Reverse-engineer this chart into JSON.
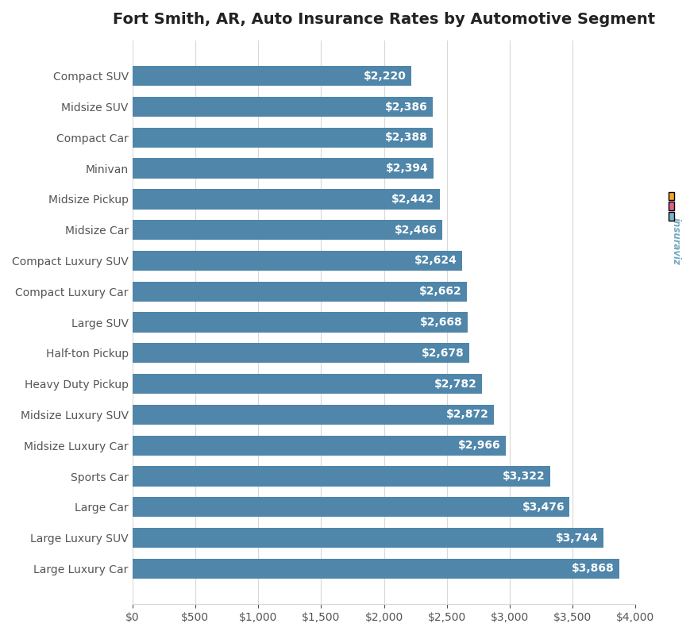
{
  "title": "Fort Smith, AR, Auto Insurance Rates by Automotive Segment",
  "categories": [
    "Compact SUV",
    "Midsize SUV",
    "Compact Car",
    "Minivan",
    "Midsize Pickup",
    "Midsize Car",
    "Compact Luxury SUV",
    "Compact Luxury Car",
    "Large SUV",
    "Half-ton Pickup",
    "Heavy Duty Pickup",
    "Midsize Luxury SUV",
    "Midsize Luxury Car",
    "Sports Car",
    "Large Car",
    "Large Luxury SUV",
    "Large Luxury Car"
  ],
  "values": [
    2220,
    2386,
    2388,
    2394,
    2442,
    2466,
    2624,
    2662,
    2668,
    2678,
    2782,
    2872,
    2966,
    3322,
    3476,
    3744,
    3868
  ],
  "bar_color": "#4f86aa",
  "label_color": "#ffffff",
  "background_color": "#ffffff",
  "grid_color": "#d8d8d8",
  "title_fontsize": 14,
  "label_fontsize": 10,
  "tick_fontsize": 10,
  "xlim": [
    0,
    4000
  ],
  "xticks": [
    0,
    500,
    1000,
    1500,
    2000,
    2500,
    3000,
    3500,
    4000
  ]
}
